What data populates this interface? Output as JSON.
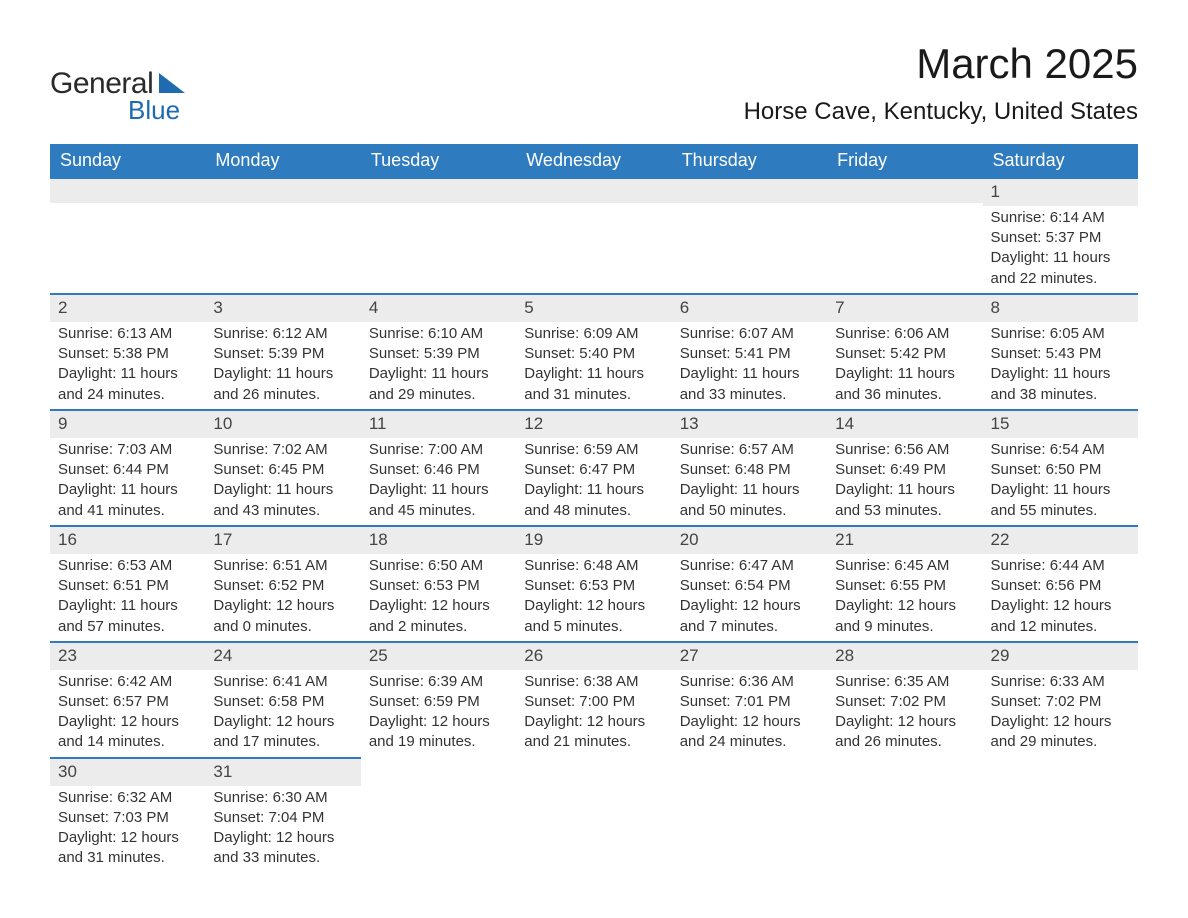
{
  "brand": {
    "part1": "General",
    "part2": "Blue",
    "accent_color": "#1f6bb0"
  },
  "header": {
    "month_title": "March 2025",
    "location": "Horse Cave, Kentucky, United States"
  },
  "calendar": {
    "type": "calendar-grid",
    "columns": 7,
    "header_bg": "#2f7bbf",
    "header_fg": "#ffffff",
    "daybar_bg": "#ececec",
    "daybar_border": "#2f7bbf",
    "text_color": "#333333",
    "day_headers": [
      "Sunday",
      "Monday",
      "Tuesday",
      "Wednesday",
      "Thursday",
      "Friday",
      "Saturday"
    ],
    "weeks": [
      [
        null,
        null,
        null,
        null,
        null,
        null,
        {
          "day": "1",
          "sunrise": "Sunrise: 6:14 AM",
          "sunset": "Sunset: 5:37 PM",
          "daylight1": "Daylight: 11 hours",
          "daylight2": "and 22 minutes."
        }
      ],
      [
        {
          "day": "2",
          "sunrise": "Sunrise: 6:13 AM",
          "sunset": "Sunset: 5:38 PM",
          "daylight1": "Daylight: 11 hours",
          "daylight2": "and 24 minutes."
        },
        {
          "day": "3",
          "sunrise": "Sunrise: 6:12 AM",
          "sunset": "Sunset: 5:39 PM",
          "daylight1": "Daylight: 11 hours",
          "daylight2": "and 26 minutes."
        },
        {
          "day": "4",
          "sunrise": "Sunrise: 6:10 AM",
          "sunset": "Sunset: 5:39 PM",
          "daylight1": "Daylight: 11 hours",
          "daylight2": "and 29 minutes."
        },
        {
          "day": "5",
          "sunrise": "Sunrise: 6:09 AM",
          "sunset": "Sunset: 5:40 PM",
          "daylight1": "Daylight: 11 hours",
          "daylight2": "and 31 minutes."
        },
        {
          "day": "6",
          "sunrise": "Sunrise: 6:07 AM",
          "sunset": "Sunset: 5:41 PM",
          "daylight1": "Daylight: 11 hours",
          "daylight2": "and 33 minutes."
        },
        {
          "day": "7",
          "sunrise": "Sunrise: 6:06 AM",
          "sunset": "Sunset: 5:42 PM",
          "daylight1": "Daylight: 11 hours",
          "daylight2": "and 36 minutes."
        },
        {
          "day": "8",
          "sunrise": "Sunrise: 6:05 AM",
          "sunset": "Sunset: 5:43 PM",
          "daylight1": "Daylight: 11 hours",
          "daylight2": "and 38 minutes."
        }
      ],
      [
        {
          "day": "9",
          "sunrise": "Sunrise: 7:03 AM",
          "sunset": "Sunset: 6:44 PM",
          "daylight1": "Daylight: 11 hours",
          "daylight2": "and 41 minutes."
        },
        {
          "day": "10",
          "sunrise": "Sunrise: 7:02 AM",
          "sunset": "Sunset: 6:45 PM",
          "daylight1": "Daylight: 11 hours",
          "daylight2": "and 43 minutes."
        },
        {
          "day": "11",
          "sunrise": "Sunrise: 7:00 AM",
          "sunset": "Sunset: 6:46 PM",
          "daylight1": "Daylight: 11 hours",
          "daylight2": "and 45 minutes."
        },
        {
          "day": "12",
          "sunrise": "Sunrise: 6:59 AM",
          "sunset": "Sunset: 6:47 PM",
          "daylight1": "Daylight: 11 hours",
          "daylight2": "and 48 minutes."
        },
        {
          "day": "13",
          "sunrise": "Sunrise: 6:57 AM",
          "sunset": "Sunset: 6:48 PM",
          "daylight1": "Daylight: 11 hours",
          "daylight2": "and 50 minutes."
        },
        {
          "day": "14",
          "sunrise": "Sunrise: 6:56 AM",
          "sunset": "Sunset: 6:49 PM",
          "daylight1": "Daylight: 11 hours",
          "daylight2": "and 53 minutes."
        },
        {
          "day": "15",
          "sunrise": "Sunrise: 6:54 AM",
          "sunset": "Sunset: 6:50 PM",
          "daylight1": "Daylight: 11 hours",
          "daylight2": "and 55 minutes."
        }
      ],
      [
        {
          "day": "16",
          "sunrise": "Sunrise: 6:53 AM",
          "sunset": "Sunset: 6:51 PM",
          "daylight1": "Daylight: 11 hours",
          "daylight2": "and 57 minutes."
        },
        {
          "day": "17",
          "sunrise": "Sunrise: 6:51 AM",
          "sunset": "Sunset: 6:52 PM",
          "daylight1": "Daylight: 12 hours",
          "daylight2": "and 0 minutes."
        },
        {
          "day": "18",
          "sunrise": "Sunrise: 6:50 AM",
          "sunset": "Sunset: 6:53 PM",
          "daylight1": "Daylight: 12 hours",
          "daylight2": "and 2 minutes."
        },
        {
          "day": "19",
          "sunrise": "Sunrise: 6:48 AM",
          "sunset": "Sunset: 6:53 PM",
          "daylight1": "Daylight: 12 hours",
          "daylight2": "and 5 minutes."
        },
        {
          "day": "20",
          "sunrise": "Sunrise: 6:47 AM",
          "sunset": "Sunset: 6:54 PM",
          "daylight1": "Daylight: 12 hours",
          "daylight2": "and 7 minutes."
        },
        {
          "day": "21",
          "sunrise": "Sunrise: 6:45 AM",
          "sunset": "Sunset: 6:55 PM",
          "daylight1": "Daylight: 12 hours",
          "daylight2": "and 9 minutes."
        },
        {
          "day": "22",
          "sunrise": "Sunrise: 6:44 AM",
          "sunset": "Sunset: 6:56 PM",
          "daylight1": "Daylight: 12 hours",
          "daylight2": "and 12 minutes."
        }
      ],
      [
        {
          "day": "23",
          "sunrise": "Sunrise: 6:42 AM",
          "sunset": "Sunset: 6:57 PM",
          "daylight1": "Daylight: 12 hours",
          "daylight2": "and 14 minutes."
        },
        {
          "day": "24",
          "sunrise": "Sunrise: 6:41 AM",
          "sunset": "Sunset: 6:58 PM",
          "daylight1": "Daylight: 12 hours",
          "daylight2": "and 17 minutes."
        },
        {
          "day": "25",
          "sunrise": "Sunrise: 6:39 AM",
          "sunset": "Sunset: 6:59 PM",
          "daylight1": "Daylight: 12 hours",
          "daylight2": "and 19 minutes."
        },
        {
          "day": "26",
          "sunrise": "Sunrise: 6:38 AM",
          "sunset": "Sunset: 7:00 PM",
          "daylight1": "Daylight: 12 hours",
          "daylight2": "and 21 minutes."
        },
        {
          "day": "27",
          "sunrise": "Sunrise: 6:36 AM",
          "sunset": "Sunset: 7:01 PM",
          "daylight1": "Daylight: 12 hours",
          "daylight2": "and 24 minutes."
        },
        {
          "day": "28",
          "sunrise": "Sunrise: 6:35 AM",
          "sunset": "Sunset: 7:02 PM",
          "daylight1": "Daylight: 12 hours",
          "daylight2": "and 26 minutes."
        },
        {
          "day": "29",
          "sunrise": "Sunrise: 6:33 AM",
          "sunset": "Sunset: 7:02 PM",
          "daylight1": "Daylight: 12 hours",
          "daylight2": "and 29 minutes."
        }
      ],
      [
        {
          "day": "30",
          "sunrise": "Sunrise: 6:32 AM",
          "sunset": "Sunset: 7:03 PM",
          "daylight1": "Daylight: 12 hours",
          "daylight2": "and 31 minutes."
        },
        {
          "day": "31",
          "sunrise": "Sunrise: 6:30 AM",
          "sunset": "Sunset: 7:04 PM",
          "daylight1": "Daylight: 12 hours",
          "daylight2": "and 33 minutes."
        },
        null,
        null,
        null,
        null,
        null
      ]
    ]
  }
}
